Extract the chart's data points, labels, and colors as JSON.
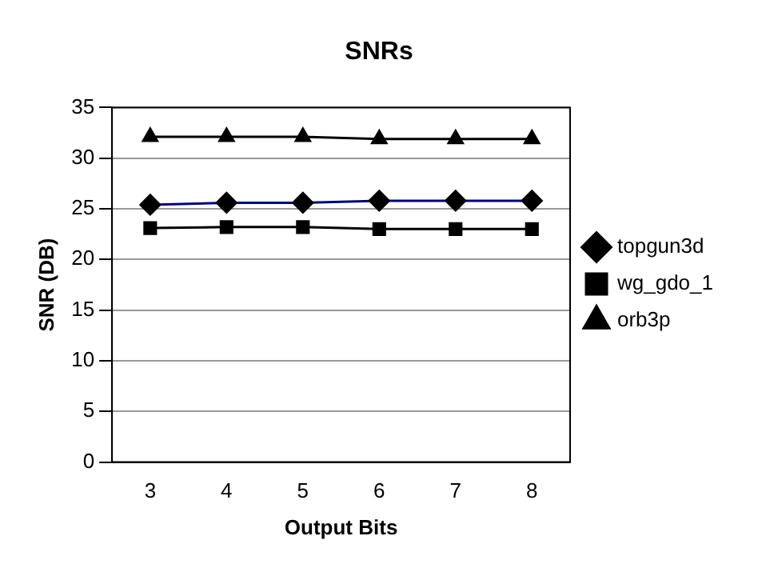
{
  "chart_data": {
    "type": "line",
    "title": "SNRs",
    "xlabel": "Output Bits",
    "ylabel": "SNR (DB)",
    "categories": [
      "3",
      "4",
      "5",
      "6",
      "7",
      "8"
    ],
    "series": [
      {
        "name": "topgun3d",
        "color": "#000080",
        "marker": "diamond",
        "values": [
          25.4,
          25.6,
          25.6,
          25.8,
          25.8,
          25.8
        ]
      },
      {
        "name": "wg_gdo_1",
        "color": "#000000",
        "marker": "square",
        "values": [
          23.1,
          23.2,
          23.2,
          23.0,
          23.0,
          23.0
        ]
      },
      {
        "name": "orb3p",
        "color": "#000000",
        "marker": "triangle",
        "values": [
          32.1,
          32.1,
          32.1,
          31.9,
          31.9,
          31.9
        ]
      }
    ],
    "ylim": [
      0,
      35
    ],
    "yticks": [
      0,
      5,
      10,
      15,
      20,
      25,
      30,
      35
    ],
    "grid": "y",
    "legend": "right"
  }
}
